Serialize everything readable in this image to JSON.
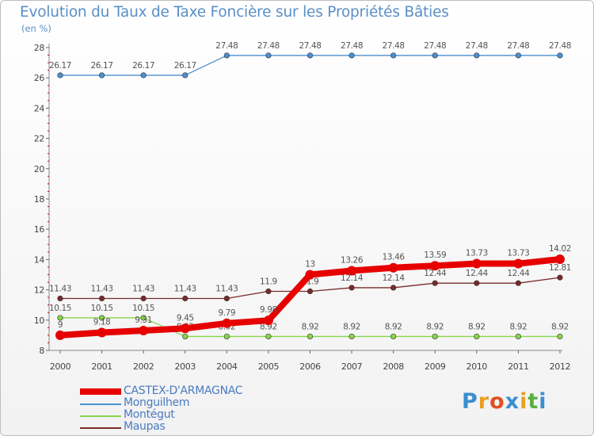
{
  "header": {
    "title": "Evolution du Taux de Taxe Foncière sur les Propriétés Bâties",
    "unit": "(en %)"
  },
  "chart_data": {
    "type": "line",
    "title": "Evolution du Taux de Taxe Foncière sur les Propriétés Bâties",
    "ylabel": "(en %)",
    "xlabel": "",
    "ylim": [
      8,
      28
    ],
    "yticks": [
      "8",
      "10",
      "12",
      "14",
      "16",
      "18",
      "20",
      "22",
      "24",
      "26",
      "28"
    ],
    "categories": [
      "2000",
      "2001",
      "2002",
      "2003",
      "2004",
      "2005",
      "2006",
      "2007",
      "2008",
      "2009",
      "2010",
      "2011",
      "2012"
    ],
    "series": [
      {
        "name": "Monguilhem",
        "color": "#4a8fcf",
        "values": [
          26.17,
          26.17,
          26.17,
          26.17,
          27.48,
          27.48,
          27.48,
          27.48,
          27.48,
          27.48,
          27.48,
          27.48,
          27.48
        ],
        "labels": [
          "26.17",
          "26.17",
          "26.17",
          "26.17",
          "27.48",
          "27.48",
          "27.48",
          "27.48",
          "27.48",
          "27.48",
          "27.48",
          "27.48",
          "27.48"
        ]
      },
      {
        "name": "Montégut",
        "color": "#88d44a",
        "values": [
          10.15,
          10.15,
          10.15,
          8.92,
          8.92,
          8.92,
          8.92,
          8.92,
          8.92,
          8.92,
          8.92,
          8.92,
          8.92
        ],
        "labels": [
          "10.15",
          "10.15",
          "10.15",
          "8.92",
          "8.92",
          "8.92",
          "8.92",
          "8.92",
          "8.92",
          "8.92",
          "8.92",
          "8.92",
          "8.92"
        ]
      },
      {
        "name": "Maupas",
        "color": "#7a2a2a",
        "values": [
          11.43,
          11.43,
          11.43,
          11.43,
          11.43,
          11.9,
          11.9,
          12.14,
          12.14,
          12.44,
          12.44,
          12.44,
          12.81
        ],
        "labels": [
          "11.43",
          "11.43",
          "11.43",
          "11.43",
          "11.43",
          "11.9",
          "11.9",
          "12.14",
          "12.14",
          "12.44",
          "12.44",
          "12.44",
          "12.81"
        ]
      },
      {
        "name": "CASTEX-D'ARMAGNAC",
        "color": "#e60000",
        "values": [
          9,
          9.18,
          9.31,
          9.45,
          9.79,
          9.98,
          13,
          13.26,
          13.46,
          13.59,
          13.73,
          13.73,
          14.02
        ],
        "labels": [
          "9",
          "9.18",
          "9.31",
          "9.45",
          "9.79",
          "9.98",
          "13",
          "13.26",
          "13.46",
          "13.59",
          "13.73",
          "13.73",
          "14.02"
        ]
      }
    ],
    "legend": [
      "CASTEX-D'ARMAGNAC",
      "Monguilhem",
      "Montégut",
      "Maupas"
    ],
    "legend_position": "bottom-left"
  },
  "logo": {
    "letters": [
      "P",
      "r",
      "o",
      "x",
      "i",
      "t",
      "i"
    ],
    "colors": [
      "#3a8fd0",
      "#e8a020",
      "#e05020",
      "#3a8fd0",
      "#e8a020",
      "#5ab040",
      "#3a8fd0"
    ]
  }
}
